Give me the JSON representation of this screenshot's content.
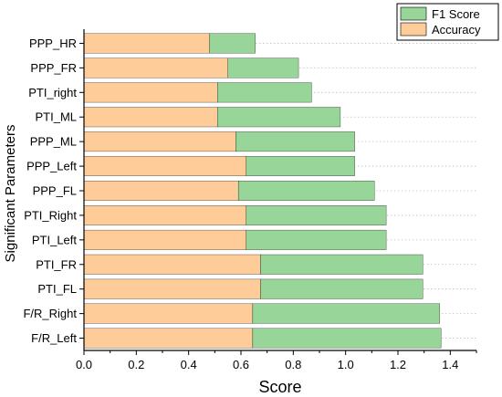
{
  "chart_data": {
    "type": "bar",
    "orientation": "horizontal",
    "stacked": true,
    "xlabel": "Score",
    "ylabel": "Significant Parameters",
    "xlim": [
      0,
      1.5
    ],
    "xticks": [
      "0.0",
      "0.2",
      "0.4",
      "0.6",
      "0.8",
      "1.0",
      "1.2",
      "1.4"
    ],
    "grid": "y dotted",
    "legend_position": "top-right",
    "categories": [
      "PPP_HR",
      "PPP_FR",
      "PTI_right",
      "PTI_ML",
      "PPP_ML",
      "PPP_Left",
      "PPP_FL",
      "PTI_Right",
      "PTI_Left",
      "PTI_FR",
      "PTI_FL",
      "F/R_Right",
      "F/R_Left"
    ],
    "series": [
      {
        "name": "Accuracy",
        "color": "#fdcc98",
        "values": [
          0.48,
          0.55,
          0.51,
          0.51,
          0.58,
          0.62,
          0.59,
          0.62,
          0.62,
          0.675,
          0.675,
          0.645,
          0.645
        ]
      },
      {
        "name": "F1 Score",
        "color": "#98d598",
        "values": [
          0.175,
          0.27,
          0.36,
          0.47,
          0.455,
          0.415,
          0.52,
          0.535,
          0.535,
          0.62,
          0.62,
          0.715,
          0.72
        ]
      }
    ],
    "legend_order": [
      "F1 Score",
      "Accuracy"
    ]
  }
}
